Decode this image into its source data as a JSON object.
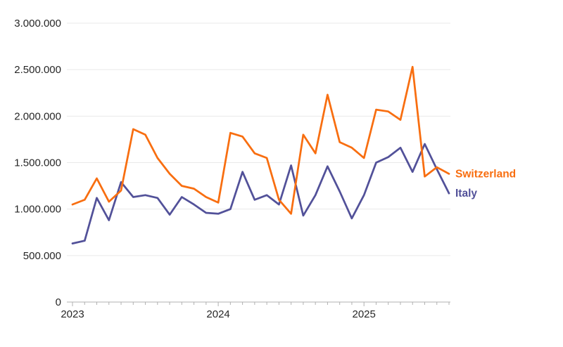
{
  "chart_data": {
    "type": "line",
    "x_unit": "month",
    "x": [
      "2023-01",
      "2023-02",
      "2023-03",
      "2023-04",
      "2023-05",
      "2023-06",
      "2023-07",
      "2023-08",
      "2023-09",
      "2023-10",
      "2023-11",
      "2023-12",
      "2024-01",
      "2024-02",
      "2024-03",
      "2024-04",
      "2024-05",
      "2024-06",
      "2024-07",
      "2024-08",
      "2024-09",
      "2024-10",
      "2024-11",
      "2024-12",
      "2025-01",
      "2025-02",
      "2025-03",
      "2025-04",
      "2025-05",
      "2025-06",
      "2025-07",
      "2025-08"
    ],
    "year_ticks": [
      {
        "index": 0,
        "label": "2023"
      },
      {
        "index": 12,
        "label": "2024"
      },
      {
        "index": 24,
        "label": "2025"
      }
    ],
    "ylim": [
      0,
      3000000
    ],
    "y_ticks": [
      {
        "value": 0,
        "label": "0"
      },
      {
        "value": 500000,
        "label": "500.000"
      },
      {
        "value": 1000000,
        "label": "1.000.000"
      },
      {
        "value": 1500000,
        "label": "1.500.000"
      },
      {
        "value": 2000000,
        "label": "2.000.000"
      },
      {
        "value": 2500000,
        "label": "2.500.000"
      },
      {
        "value": 3000000,
        "label": "3.000.000"
      }
    ],
    "grid": "horizontal",
    "legend_position": "line-end-labels",
    "series": [
      {
        "name": "Italy",
        "color": "#525199",
        "values": [
          630000,
          660000,
          1120000,
          880000,
          1290000,
          1130000,
          1150000,
          1120000,
          940000,
          1130000,
          1050000,
          960000,
          950000,
          1000000,
          1400000,
          1100000,
          1150000,
          1050000,
          1470000,
          930000,
          1150000,
          1460000,
          1190000,
          900000,
          1150000,
          1500000,
          1560000,
          1660000,
          1400000,
          1700000,
          1430000,
          1170000
        ]
      },
      {
        "name": "Switzerland",
        "color": "#f86e10",
        "values": [
          1050000,
          1100000,
          1330000,
          1080000,
          1200000,
          1860000,
          1800000,
          1550000,
          1380000,
          1250000,
          1220000,
          1130000,
          1070000,
          1820000,
          1780000,
          1600000,
          1550000,
          1100000,
          950000,
          1800000,
          1600000,
          2230000,
          1720000,
          1660000,
          1550000,
          2070000,
          2050000,
          1960000,
          2530000,
          1350000,
          1450000,
          1380000
        ]
      }
    ],
    "colors": {
      "grid": "#e9e9e9",
      "axis": "#b0b0b0",
      "tick_text": "#262626"
    }
  }
}
